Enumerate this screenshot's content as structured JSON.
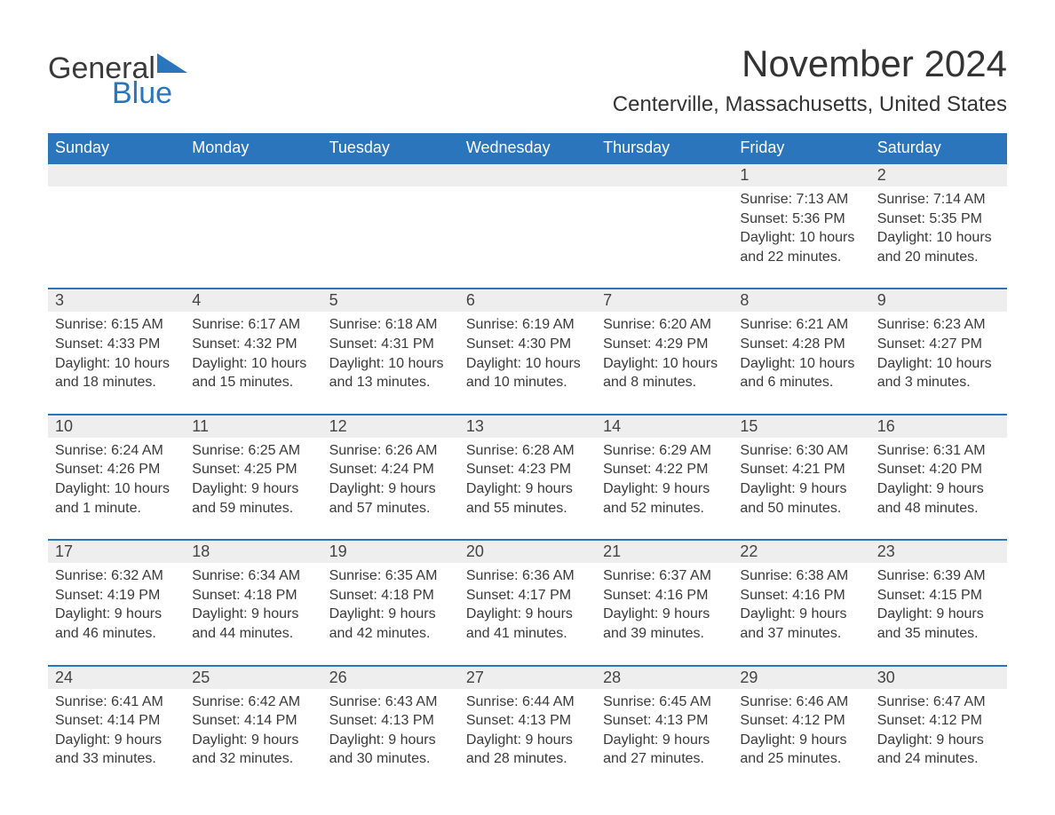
{
  "logo": {
    "text1": "General",
    "text2": "Blue"
  },
  "title": "November 2024",
  "location": "Centerville, Massachusetts, United States",
  "colors": {
    "accent": "#2a75bb",
    "header_bg": "#2a75bb",
    "row_bg": "#eeeeee",
    "text": "#3a3a3a",
    "page_bg": "#ffffff"
  },
  "day_headers": [
    "Sunday",
    "Monday",
    "Tuesday",
    "Wednesday",
    "Thursday",
    "Friday",
    "Saturday"
  ],
  "weeks": [
    [
      null,
      null,
      null,
      null,
      null,
      {
        "n": "1",
        "sr": "Sunrise: 7:13 AM",
        "ss": "Sunset: 5:36 PM",
        "dl": "Daylight: 10 hours and 22 minutes."
      },
      {
        "n": "2",
        "sr": "Sunrise: 7:14 AM",
        "ss": "Sunset: 5:35 PM",
        "dl": "Daylight: 10 hours and 20 minutes."
      }
    ],
    [
      {
        "n": "3",
        "sr": "Sunrise: 6:15 AM",
        "ss": "Sunset: 4:33 PM",
        "dl": "Daylight: 10 hours and 18 minutes."
      },
      {
        "n": "4",
        "sr": "Sunrise: 6:17 AM",
        "ss": "Sunset: 4:32 PM",
        "dl": "Daylight: 10 hours and 15 minutes."
      },
      {
        "n": "5",
        "sr": "Sunrise: 6:18 AM",
        "ss": "Sunset: 4:31 PM",
        "dl": "Daylight: 10 hours and 13 minutes."
      },
      {
        "n": "6",
        "sr": "Sunrise: 6:19 AM",
        "ss": "Sunset: 4:30 PM",
        "dl": "Daylight: 10 hours and 10 minutes."
      },
      {
        "n": "7",
        "sr": "Sunrise: 6:20 AM",
        "ss": "Sunset: 4:29 PM",
        "dl": "Daylight: 10 hours and 8 minutes."
      },
      {
        "n": "8",
        "sr": "Sunrise: 6:21 AM",
        "ss": "Sunset: 4:28 PM",
        "dl": "Daylight: 10 hours and 6 minutes."
      },
      {
        "n": "9",
        "sr": "Sunrise: 6:23 AM",
        "ss": "Sunset: 4:27 PM",
        "dl": "Daylight: 10 hours and 3 minutes."
      }
    ],
    [
      {
        "n": "10",
        "sr": "Sunrise: 6:24 AM",
        "ss": "Sunset: 4:26 PM",
        "dl": "Daylight: 10 hours and 1 minute."
      },
      {
        "n": "11",
        "sr": "Sunrise: 6:25 AM",
        "ss": "Sunset: 4:25 PM",
        "dl": "Daylight: 9 hours and 59 minutes."
      },
      {
        "n": "12",
        "sr": "Sunrise: 6:26 AM",
        "ss": "Sunset: 4:24 PM",
        "dl": "Daylight: 9 hours and 57 minutes."
      },
      {
        "n": "13",
        "sr": "Sunrise: 6:28 AM",
        "ss": "Sunset: 4:23 PM",
        "dl": "Daylight: 9 hours and 55 minutes."
      },
      {
        "n": "14",
        "sr": "Sunrise: 6:29 AM",
        "ss": "Sunset: 4:22 PM",
        "dl": "Daylight: 9 hours and 52 minutes."
      },
      {
        "n": "15",
        "sr": "Sunrise: 6:30 AM",
        "ss": "Sunset: 4:21 PM",
        "dl": "Daylight: 9 hours and 50 minutes."
      },
      {
        "n": "16",
        "sr": "Sunrise: 6:31 AM",
        "ss": "Sunset: 4:20 PM",
        "dl": "Daylight: 9 hours and 48 minutes."
      }
    ],
    [
      {
        "n": "17",
        "sr": "Sunrise: 6:32 AM",
        "ss": "Sunset: 4:19 PM",
        "dl": "Daylight: 9 hours and 46 minutes."
      },
      {
        "n": "18",
        "sr": "Sunrise: 6:34 AM",
        "ss": "Sunset: 4:18 PM",
        "dl": "Daylight: 9 hours and 44 minutes."
      },
      {
        "n": "19",
        "sr": "Sunrise: 6:35 AM",
        "ss": "Sunset: 4:18 PM",
        "dl": "Daylight: 9 hours and 42 minutes."
      },
      {
        "n": "20",
        "sr": "Sunrise: 6:36 AM",
        "ss": "Sunset: 4:17 PM",
        "dl": "Daylight: 9 hours and 41 minutes."
      },
      {
        "n": "21",
        "sr": "Sunrise: 6:37 AM",
        "ss": "Sunset: 4:16 PM",
        "dl": "Daylight: 9 hours and 39 minutes."
      },
      {
        "n": "22",
        "sr": "Sunrise: 6:38 AM",
        "ss": "Sunset: 4:16 PM",
        "dl": "Daylight: 9 hours and 37 minutes."
      },
      {
        "n": "23",
        "sr": "Sunrise: 6:39 AM",
        "ss": "Sunset: 4:15 PM",
        "dl": "Daylight: 9 hours and 35 minutes."
      }
    ],
    [
      {
        "n": "24",
        "sr": "Sunrise: 6:41 AM",
        "ss": "Sunset: 4:14 PM",
        "dl": "Daylight: 9 hours and 33 minutes."
      },
      {
        "n": "25",
        "sr": "Sunrise: 6:42 AM",
        "ss": "Sunset: 4:14 PM",
        "dl": "Daylight: 9 hours and 32 minutes."
      },
      {
        "n": "26",
        "sr": "Sunrise: 6:43 AM",
        "ss": "Sunset: 4:13 PM",
        "dl": "Daylight: 9 hours and 30 minutes."
      },
      {
        "n": "27",
        "sr": "Sunrise: 6:44 AM",
        "ss": "Sunset: 4:13 PM",
        "dl": "Daylight: 9 hours and 28 minutes."
      },
      {
        "n": "28",
        "sr": "Sunrise: 6:45 AM",
        "ss": "Sunset: 4:13 PM",
        "dl": "Daylight: 9 hours and 27 minutes."
      },
      {
        "n": "29",
        "sr": "Sunrise: 6:46 AM",
        "ss": "Sunset: 4:12 PM",
        "dl": "Daylight: 9 hours and 25 minutes."
      },
      {
        "n": "30",
        "sr": "Sunrise: 6:47 AM",
        "ss": "Sunset: 4:12 PM",
        "dl": "Daylight: 9 hours and 24 minutes."
      }
    ]
  ]
}
